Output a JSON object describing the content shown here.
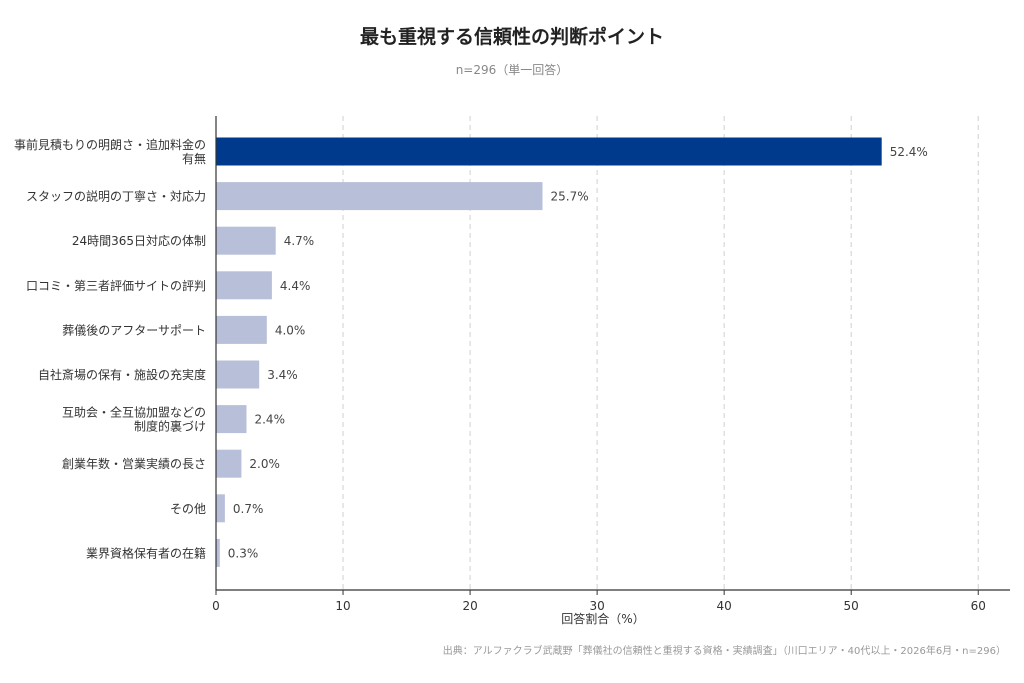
{
  "title": "最も重視する信頼性の判断ポイント",
  "subtitle": "n=296（単一回答）",
  "source": "出典：アルファクラブ武蔵野「葬儀社の信頼性と重視する資格・実績調査」（川口エリア・40代以上・2026年6月・n=296）",
  "colors": {
    "highlight": "#003a8c",
    "bar": "#b8c0d9",
    "grid": "#d0d0d0",
    "axis": "#333333"
  },
  "chart_data": {
    "type": "bar",
    "orientation": "horizontal",
    "categories": [
      [
        "事前見積もりの明朗さ・追加料金の",
        "有無"
      ],
      [
        "スタッフの説明の丁寧さ・対応力"
      ],
      [
        "24時間365日対応の体制"
      ],
      [
        "口コミ・第三者評価サイトの評判"
      ],
      [
        "葬儀後のアフターサポート"
      ],
      [
        "自社斎場の保有・施設の充実度"
      ],
      [
        "互助会・全互協加盟などの",
        "制度的裏づけ"
      ],
      [
        "創業年数・営業実績の長さ"
      ],
      [
        "その他"
      ],
      [
        "業界資格保有者の在籍"
      ]
    ],
    "values": [
      52.4,
      25.7,
      4.7,
      4.4,
      4.0,
      3.4,
      2.4,
      2.0,
      0.7,
      0.3
    ],
    "value_labels": [
      "52.4%",
      "25.7%",
      "4.7%",
      "4.4%",
      "4.0%",
      "3.4%",
      "2.4%",
      "2.0%",
      "0.7%",
      "0.3%"
    ],
    "xlabel": "回答割合（%）",
    "ylabel": "",
    "xlim": [
      0,
      62.5
    ],
    "xticks": [
      0,
      10,
      20,
      30,
      40,
      50,
      60
    ],
    "grid": "x-dashed",
    "highlight_index": 0
  }
}
